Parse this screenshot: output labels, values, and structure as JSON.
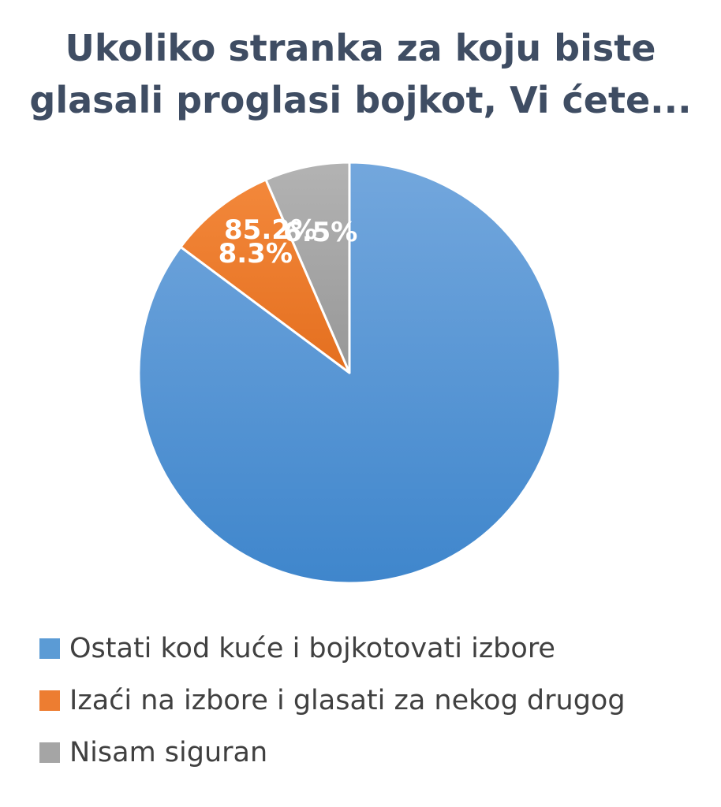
{
  "chart_data": {
    "type": "pie",
    "title_lines": [
      "Ukoliko stranka za koju biste",
      "glasali proglasi bojkot, Vi ćete..."
    ],
    "slices": [
      {
        "label": "Ostati kod kuće i bojkotovati izbore",
        "value": 85.2,
        "value_label": "85.2%",
        "color": "#5b9bd5"
      },
      {
        "label": "Izaći na izbore i glasati za nekog drugog",
        "value": 8.3,
        "value_label": "8.3%",
        "color": "#ed7d31"
      },
      {
        "label": "Nisam siguran",
        "value": 6.5,
        "value_label": "6.5%",
        "color": "#a5a5a5"
      }
    ],
    "start_angle_deg": 0,
    "direction": "clockwise",
    "legend_position": "bottom-left"
  }
}
